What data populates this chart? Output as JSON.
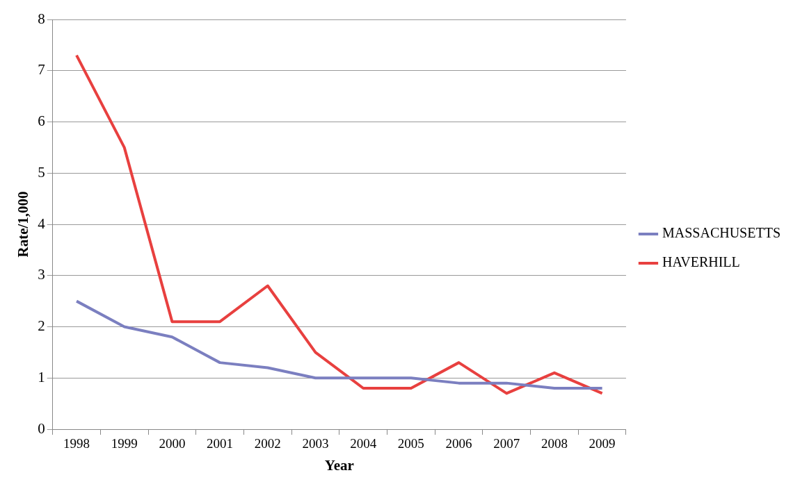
{
  "chart_data": {
    "type": "line",
    "xlabel": "Year",
    "ylabel": "Rate/1,000",
    "categories": [
      "1998",
      "1999",
      "2000",
      "2001",
      "2002",
      "2003",
      "2004",
      "2005",
      "2006",
      "2007",
      "2008",
      "2009"
    ],
    "series": [
      {
        "name": "MASSACHUSETTS",
        "color": "#7b7fc0",
        "values": [
          2.5,
          2.0,
          1.8,
          1.3,
          1.2,
          1.0,
          1.0,
          1.0,
          0.9,
          0.9,
          0.8,
          0.8
        ]
      },
      {
        "name": "HAVERHILL",
        "color": "#e8403f",
        "values": [
          7.3,
          5.5,
          2.1,
          2.1,
          2.8,
          1.5,
          0.8,
          0.8,
          1.3,
          0.7,
          1.1,
          0.7
        ]
      }
    ],
    "ylim": [
      0,
      8
    ],
    "yticks": [
      0,
      1,
      2,
      3,
      4,
      5,
      6,
      7,
      8
    ],
    "grid": "y",
    "legend": "right",
    "marker": "none",
    "line_style": "solid"
  }
}
